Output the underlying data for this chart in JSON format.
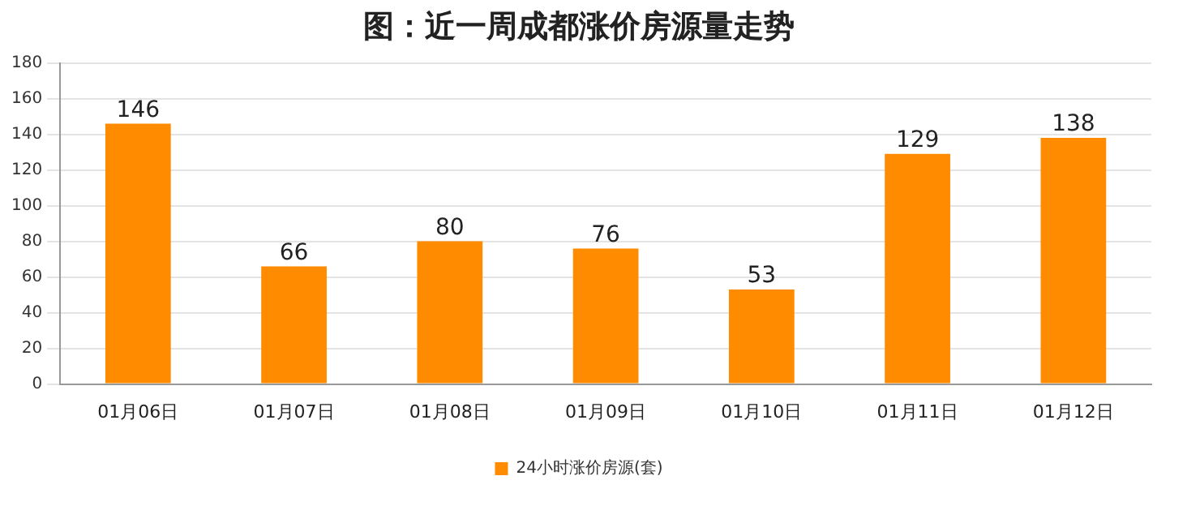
{
  "chart_data": {
    "type": "bar",
    "title": "图：近一周成都涨价房源量走势",
    "categories": [
      "01月06日",
      "01月07日",
      "01月08日",
      "01月09日",
      "01月10日",
      "01月11日",
      "01月12日"
    ],
    "series": [
      {
        "name": "24小时涨价房源(套)",
        "color": "#ff8c00",
        "values": [
          146,
          66,
          80,
          76,
          53,
          129,
          138
        ]
      }
    ],
    "ylim": [
      0,
      180
    ],
    "yticks": [
      0,
      20,
      40,
      60,
      80,
      100,
      120,
      140,
      160,
      180
    ],
    "grid": "y",
    "legend": "bottom",
    "data_labels": true
  }
}
